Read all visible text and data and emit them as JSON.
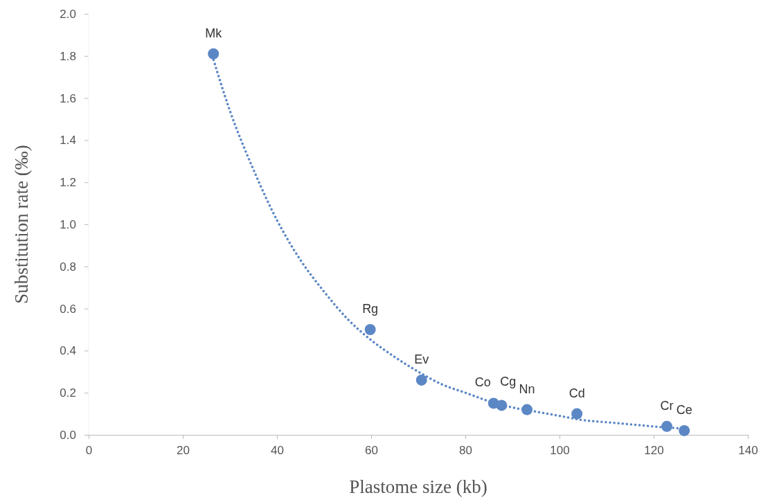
{
  "chart_data": {
    "type": "scatter",
    "xlabel": "Plastome size (kb)",
    "ylabel": "Substitution rate (‰)",
    "xlim": [
      0,
      140
    ],
    "xticks": [
      0,
      20,
      40,
      60,
      80,
      100,
      120,
      140
    ],
    "ylim": [
      0,
      2
    ],
    "yticks": [
      {
        "value": 0,
        "label": "0.0"
      },
      {
        "value": 0.2,
        "label": "0.2"
      },
      {
        "value": 0.4,
        "label": "0.4"
      },
      {
        "value": 0.6,
        "label": "0.6"
      },
      {
        "value": 0.8,
        "label": "0.8"
      },
      {
        "value": 1,
        "label": "1.0"
      },
      {
        "value": 1.2,
        "label": "1.2"
      },
      {
        "value": 1.4,
        "label": "1.4"
      },
      {
        "value": 1.6,
        "label": "1.6"
      },
      {
        "value": 1.8,
        "label": "1.8"
      },
      {
        "value": 2,
        "label": "2.0"
      }
    ],
    "grid": false,
    "series": [
      {
        "color": "#5b87c5",
        "marker": "circle",
        "x": [
          26.5,
          59.8,
          70.7,
          86.0,
          87.7,
          93.1,
          103.7,
          122.8,
          126.5
        ],
        "values": [
          1.81,
          0.5,
          0.26,
          0.15,
          0.14,
          0.12,
          0.1,
          0.04,
          0.02
        ]
      },
      {
        "type": "line",
        "color": "#5b87c5",
        "marker": "none",
        "line_style": "dotted",
        "x": [
          26,
          30,
          35,
          40,
          45,
          50,
          55,
          60,
          65,
          70,
          75,
          80,
          85,
          90,
          95,
          100,
          105,
          110,
          115,
          120,
          126
        ],
        "values": [
          1.82,
          1.54,
          1.26,
          1.02,
          0.83,
          0.68,
          0.55,
          0.45,
          0.37,
          0.3,
          0.24,
          0.2,
          0.16,
          0.13,
          0.11,
          0.09,
          0.07,
          0.06,
          0.05,
          0.04,
          0.03
        ]
      }
    ],
    "annotations": [
      {
        "text": "Mk",
        "x": 26.5,
        "y": 1.81
      },
      {
        "text": "Rg",
        "x": 59.8,
        "y": 0.5
      },
      {
        "text": "Ev",
        "x": 70.7,
        "y": 0.26
      },
      {
        "text": "Co",
        "x": 86.0,
        "y": 0.15
      },
      {
        "text": "Cg",
        "x": 87.7,
        "y": 0.14
      },
      {
        "text": "Nn",
        "x": 93.1,
        "y": 0.12
      },
      {
        "text": "Cd",
        "x": 103.7,
        "y": 0.1
      },
      {
        "text": "Cr",
        "x": 122.8,
        "y": 0.04
      },
      {
        "text": "Ce",
        "x": 126.5,
        "y": 0.02
      }
    ]
  }
}
